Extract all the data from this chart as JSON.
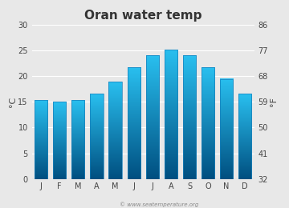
{
  "title": "Oran water temp",
  "months": [
    "J",
    "F",
    "M",
    "A",
    "M",
    "J",
    "J",
    "A",
    "S",
    "O",
    "N",
    "D"
  ],
  "values_c": [
    15.4,
    15.0,
    15.3,
    16.6,
    18.9,
    21.7,
    24.1,
    25.2,
    24.1,
    21.7,
    19.5,
    16.6
  ],
  "ylim_c": [
    0,
    30
  ],
  "yticks_c": [
    0,
    5,
    10,
    15,
    20,
    25,
    30
  ],
  "yticks_f": [
    32,
    41,
    50,
    59,
    68,
    77,
    86
  ],
  "ylabel_left": "°C",
  "ylabel_right": "°F",
  "bar_color_top": "#29bfef",
  "bar_color_bottom": "#004f80",
  "background_color": "#e8e8e8",
  "plot_bg_color": "#e8e8e8",
  "grid_color": "#ffffff",
  "watermark": "© www.seatemperature.org",
  "title_fontsize": 11,
  "tick_fontsize": 7,
  "label_fontsize": 8,
  "bar_width": 0.7
}
